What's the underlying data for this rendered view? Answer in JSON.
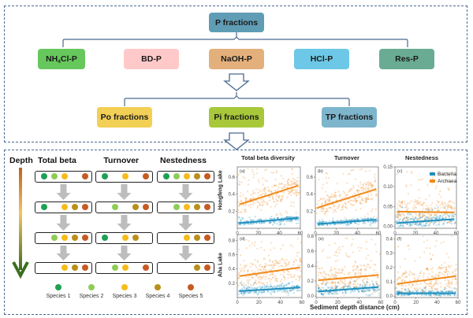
{
  "flowchart": {
    "root": {
      "label": "P fractions",
      "color": "#5f9db5"
    },
    "level1": [
      {
        "label": "NH",
        "sub": "4",
        "suffix": "Cl-P",
        "color": "#66c75d"
      },
      {
        "label": "BD-P",
        "sub": "",
        "suffix": "",
        "color": "#ffc9c9"
      },
      {
        "label": "NaOH-P",
        "sub": "",
        "suffix": "",
        "color": "#e3b07c"
      },
      {
        "label": "HCl-P",
        "sub": "",
        "suffix": "",
        "color": "#6cc8e6"
      },
      {
        "label": "Res-P",
        "sub": "",
        "suffix": "",
        "color": "#6aab93"
      }
    ],
    "level2": [
      {
        "label": "Po fractions",
        "color": "#f2cf55"
      },
      {
        "label": "Pi fractions",
        "color": "#a8c83a"
      },
      {
        "label": "TP fractions",
        "color": "#7db5cc"
      }
    ],
    "connector_color": "#4a6a90"
  },
  "schematic": {
    "depth_label": "Depth",
    "columns": [
      {
        "title": "Total beta",
        "rows": [
          [
            1,
            2,
            3,
            0,
            5
          ],
          [
            1,
            0,
            3,
            4,
            5
          ],
          [
            0,
            2,
            3,
            4,
            5
          ],
          [
            0,
            0,
            3,
            4,
            5
          ]
        ]
      },
      {
        "title": "Turnover",
        "rows": [
          [
            1,
            0,
            3,
            0,
            5
          ],
          [
            0,
            2,
            0,
            4,
            5
          ],
          [
            1,
            0,
            3,
            4,
            0
          ],
          [
            0,
            2,
            3,
            0,
            5
          ]
        ]
      },
      {
        "title": "Nestedness",
        "rows": [
          [
            1,
            2,
            3,
            4,
            5
          ],
          [
            0,
            2,
            3,
            4,
            5
          ],
          [
            0,
            0,
            3,
            4,
            5
          ],
          [
            0,
            0,
            0,
            4,
            5
          ]
        ]
      }
    ],
    "species": [
      {
        "label": "Species 1",
        "color": "#1fa055"
      },
      {
        "label": "Species 2",
        "color": "#8fcc57"
      },
      {
        "label": "Species 3",
        "color": "#f7bb1a"
      },
      {
        "label": "Species 4",
        "color": "#b8901a"
      },
      {
        "label": "Species 5",
        "color": "#c75a22"
      }
    ]
  },
  "chart_data": [
    {
      "type": "scatter",
      "tag": "(a)",
      "title": "Total beta diversity",
      "row": "Hongfeng Lake",
      "xlim": [
        0,
        60
      ],
      "ylim": [
        0,
        0.72
      ],
      "xticks": [
        0,
        20,
        40,
        60
      ],
      "yticks": [
        0.2,
        0.4,
        0.6
      ],
      "series": [
        {
          "name": "Bacteria",
          "color": "#1e8fbf",
          "fit": [
            [
              2,
              0.06
            ],
            [
              58,
              0.12
            ]
          ],
          "spread": [
            0.04,
            0.14
          ]
        },
        {
          "name": "Archaea",
          "color": "#f08a1c",
          "fit": [
            [
              2,
              0.28
            ],
            [
              58,
              0.5
            ]
          ],
          "spread": [
            0.15,
            0.7
          ]
        }
      ]
    },
    {
      "type": "scatter",
      "tag": "(b)",
      "title": "Turnover",
      "row": "Hongfeng Lake",
      "xlim": [
        0,
        60
      ],
      "ylim": [
        0,
        0.72
      ],
      "xticks": [
        0,
        20,
        40,
        60
      ],
      "yticks": [
        0.2,
        0.4,
        0.6
      ],
      "series": [
        {
          "name": "Bacteria",
          "color": "#1e8fbf",
          "fit": [
            [
              2,
              0.05
            ],
            [
              58,
              0.1
            ]
          ],
          "spread": [
            0.03,
            0.12
          ]
        },
        {
          "name": "Archaea",
          "color": "#f08a1c",
          "fit": [
            [
              2,
              0.24
            ],
            [
              58,
              0.46
            ]
          ],
          "spread": [
            0.12,
            0.7
          ]
        }
      ]
    },
    {
      "type": "scatter",
      "tag": "(c)",
      "title": "Nestedness",
      "row": "Hongfeng Lake",
      "xlim": [
        0,
        60
      ],
      "ylim": [
        -0.005,
        0.15
      ],
      "xticks": [
        0,
        20,
        40,
        60
      ],
      "yticks": [
        0.0,
        0.05,
        0.1,
        0.15
      ],
      "ytick_labels": [
        "0.00",
        "0.05",
        "0.10",
        "0.15"
      ],
      "legend": {
        "position": "top-right",
        "entries": [
          "Bacteria",
          "Archaea"
        ]
      },
      "series": [
        {
          "name": "Bacteria",
          "color": "#1e8fbf",
          "fit": [
            [
              2,
              0.008
            ],
            [
              58,
              0.018
            ]
          ],
          "spread": [
            0.0,
            0.05
          ]
        },
        {
          "name": "Archaea",
          "color": "#f08a1c",
          "fit": [
            [
              2,
              0.037
            ],
            [
              58,
              0.035
            ]
          ],
          "spread": [
            0.0,
            0.14
          ]
        }
      ]
    },
    {
      "type": "scatter",
      "tag": "(d)",
      "title": "",
      "row": "Aha Lake",
      "xlim": [
        0,
        60
      ],
      "ylim": [
        0,
        0.88
      ],
      "xticks": [
        0,
        20,
        40,
        60
      ],
      "yticks": [
        0.2,
        0.4,
        0.6,
        0.8
      ],
      "series": [
        {
          "name": "Bacteria",
          "color": "#1e8fbf",
          "fit": [
            [
              2,
              0.09
            ],
            [
              58,
              0.14
            ]
          ],
          "spread": [
            0.03,
            0.22
          ]
        },
        {
          "name": "Archaea",
          "color": "#f08a1c",
          "fit": [
            [
              2,
              0.3
            ],
            [
              58,
              0.42
            ]
          ],
          "spread": [
            0.05,
            0.85
          ]
        }
      ]
    },
    {
      "type": "scatter",
      "tag": "(e)",
      "title": "",
      "row": "Aha Lake",
      "xlim": [
        0,
        60
      ],
      "ylim": [
        -0.02,
        0.82
      ],
      "xticks": [
        0,
        20,
        40,
        60
      ],
      "yticks": [
        0.0,
        0.2,
        0.4,
        0.6,
        0.8
      ],
      "series": [
        {
          "name": "Bacteria",
          "color": "#1e8fbf",
          "fit": [
            [
              2,
              0.06
            ],
            [
              58,
              0.12
            ]
          ],
          "spread": [
            0.0,
            0.2
          ]
        },
        {
          "name": "Archaea",
          "color": "#f08a1c",
          "fit": [
            [
              2,
              0.21
            ],
            [
              58,
              0.28
            ]
          ],
          "spread": [
            0.0,
            0.8
          ]
        }
      ]
    },
    {
      "type": "scatter",
      "tag": "(f)",
      "title": "",
      "row": "Aha Lake",
      "xlim": [
        0,
        60
      ],
      "ylim": [
        -0.01,
        0.43
      ],
      "xticks": [
        0,
        20,
        40,
        60
      ],
      "yticks": [
        0.0,
        0.1,
        0.2,
        0.3,
        0.4
      ],
      "series": [
        {
          "name": "Bacteria",
          "color": "#1e8fbf",
          "fit": [
            [
              2,
              0.02
            ],
            [
              58,
              0.02
            ]
          ],
          "spread": [
            0.0,
            0.06
          ]
        },
        {
          "name": "Archaea",
          "color": "#f08a1c",
          "fit": [
            [
              2,
              0.085
            ],
            [
              58,
              0.14
            ]
          ],
          "spread": [
            0.0,
            0.42
          ]
        }
      ]
    }
  ],
  "charts_common": {
    "xlabel": "Sediment depth distance (cm)",
    "row_labels": [
      "Hongfeng Lake",
      "Aha Lake"
    ]
  }
}
